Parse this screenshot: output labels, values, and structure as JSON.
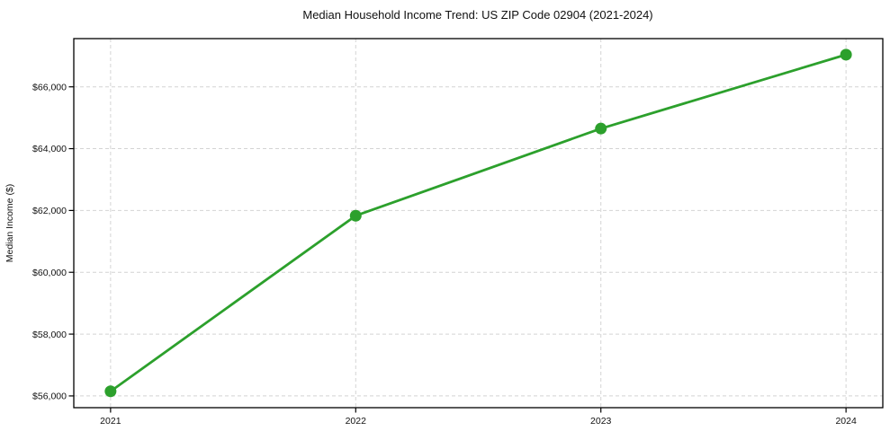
{
  "chart_data": {
    "type": "line",
    "title": "Median Household Income Trend: US ZIP Code 02904 (2021-2024)",
    "xlabel": "",
    "ylabel": "Median Income ($)",
    "x": [
      2021,
      2022,
      2023,
      2024
    ],
    "series": [
      {
        "name": "Median Household Income",
        "values": [
          56150,
          61830,
          64650,
          67040
        ]
      }
    ],
    "x_tick_labels": [
      "2021",
      "2022",
      "2023",
      "2024"
    ],
    "y_ticks": [
      56000,
      58000,
      60000,
      62000,
      64000,
      66000
    ],
    "y_tick_labels": [
      "$56,000",
      "$58,000",
      "$60,000",
      "$62,000",
      "$64,000",
      "$66,000"
    ],
    "xlim": [
      2020.85,
      2024.15
    ],
    "ylim": [
      55620,
      67560
    ],
    "grid": true,
    "grid_style": "dashed",
    "legend_position": "none",
    "colors": {
      "line": "#2ca02c",
      "marker": "#2ca02c",
      "grid": "#d4d4d4",
      "axis": "#000000",
      "background": "#ffffff"
    }
  }
}
